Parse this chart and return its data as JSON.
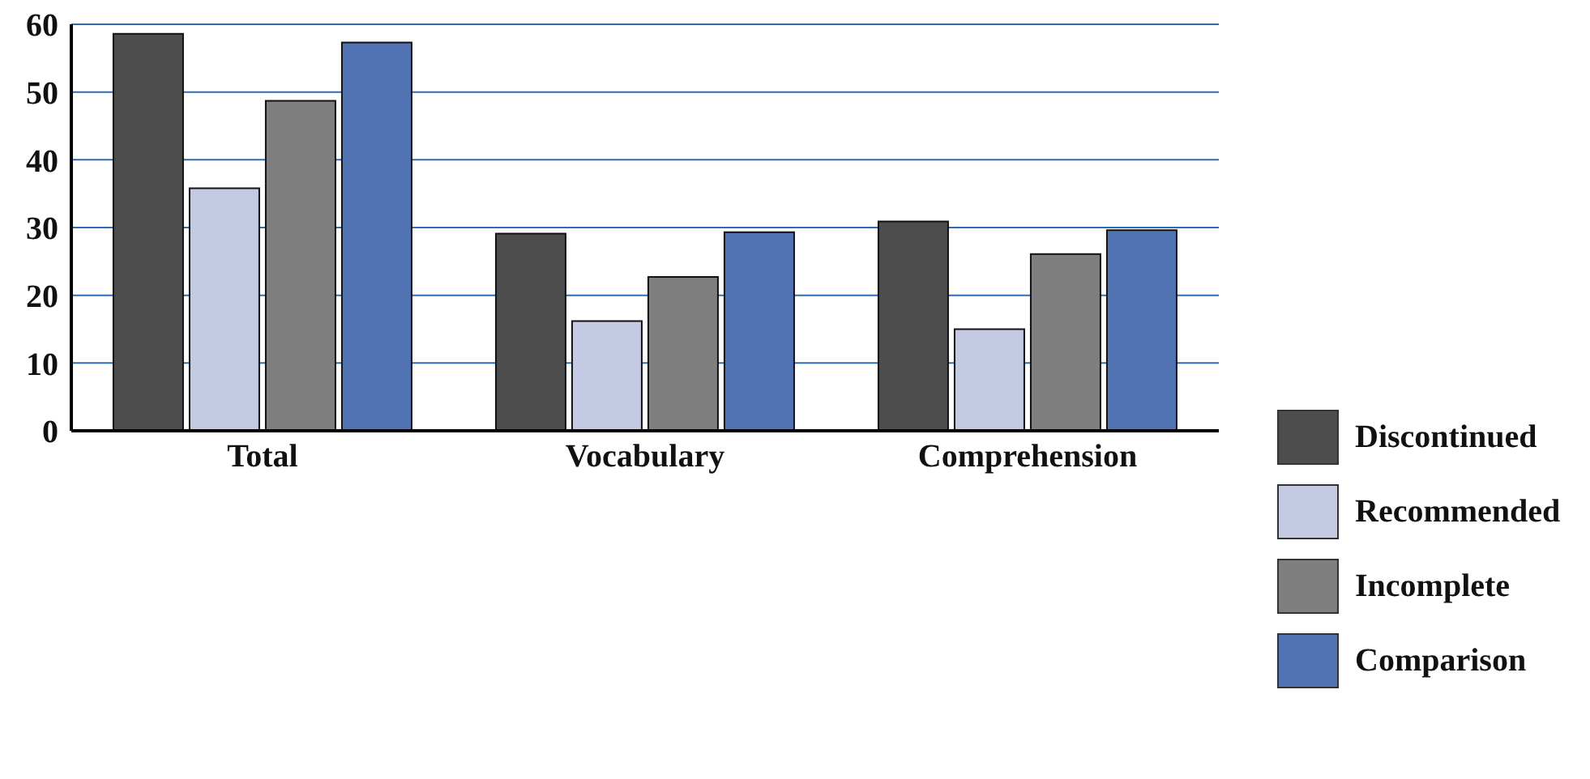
{
  "chart_data": {
    "type": "bar",
    "categories": [
      "Total",
      "Vocabulary",
      "Comprehension"
    ],
    "series": [
      {
        "name": "Discontinued",
        "color": "#4d4d4d",
        "values": [
          58.6,
          29.1,
          30.9
        ]
      },
      {
        "name": "Recommended",
        "color": "#c4cae3",
        "values": [
          35.8,
          16.2,
          15.0
        ]
      },
      {
        "name": "Incomplete",
        "color": "#7f7f7f",
        "values": [
          48.7,
          22.7,
          26.1
        ]
      },
      {
        "name": "Comparison",
        "color": "#5273b3",
        "values": [
          57.3,
          29.3,
          29.6
        ]
      }
    ],
    "ylim": [
      0,
      60
    ],
    "yticks": [
      0,
      10,
      20,
      30,
      40,
      50,
      60
    ],
    "grid": "y",
    "legend": "right"
  }
}
